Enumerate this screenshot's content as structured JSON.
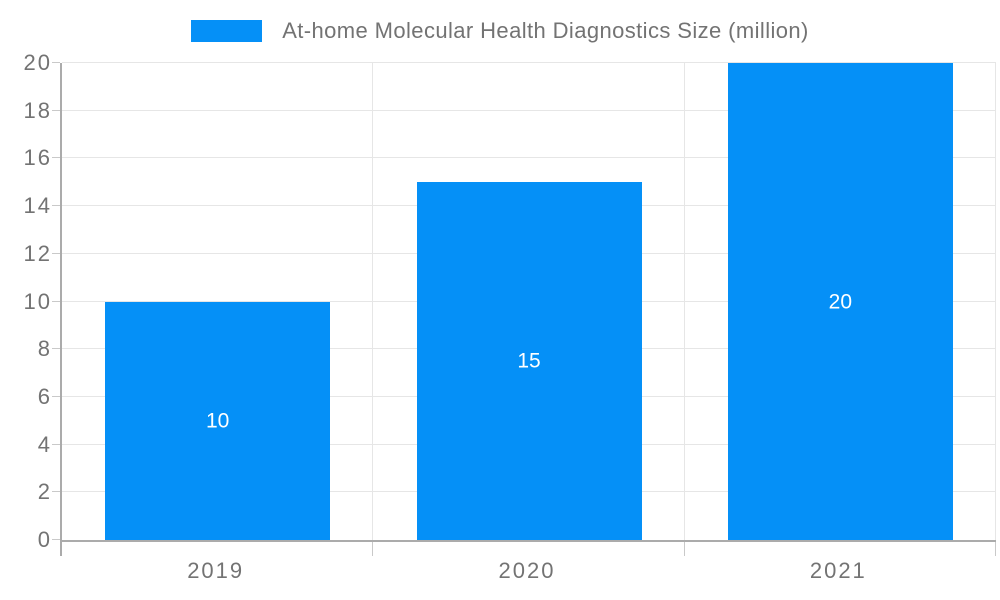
{
  "chart_data": {
    "type": "bar",
    "title": "At-home Molecular Health Diagnostics Size (million)",
    "categories": [
      "2019",
      "2020",
      "2021"
    ],
    "values": [
      10,
      15,
      20
    ],
    "xlabel": "",
    "ylabel": "",
    "ylim": [
      0,
      20
    ],
    "ytick_step": 2,
    "grid": true,
    "legend_position": "top",
    "colors": {
      "bar": "#0590f7",
      "bar_label": "#ffffff",
      "axis_text": "#737373",
      "axis_line": "#ababab",
      "grid_line": "#e6e6e6",
      "tick": "#c9c9c9",
      "background": "#ffffff"
    }
  }
}
